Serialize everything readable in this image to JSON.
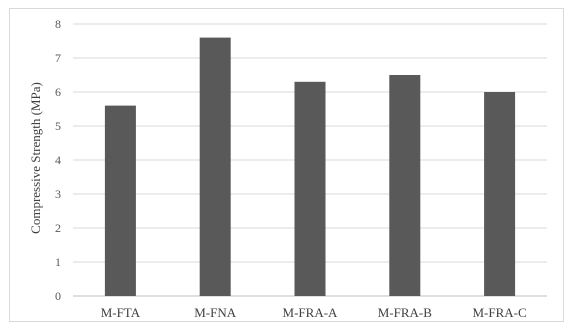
{
  "chart_data": {
    "type": "bar",
    "title": "",
    "xlabel": "",
    "ylabel": "Compressive Strength (MPa)",
    "categories": [
      "M-FTA",
      "M-FNA",
      "M-FRA-A",
      "M-FRA-B",
      "M-FRA-C"
    ],
    "values": [
      5.6,
      7.6,
      6.3,
      6.5,
      6.0
    ],
    "ylim": [
      0,
      8
    ],
    "yticks": [
      "0",
      "1",
      "2",
      "3",
      "4",
      "5",
      "6",
      "7",
      "8"
    ],
    "grid": true,
    "legend": "none",
    "colors": {
      "bar": "#595959",
      "grid": "#d9d9d9",
      "axis": "#bfbfbf"
    }
  }
}
